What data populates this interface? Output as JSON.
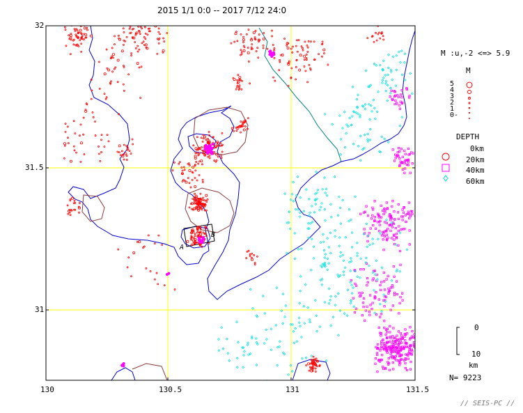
{
  "title": "2015 1/1 0:0 -- 2017 7/12 24:0",
  "axes": {
    "lat_ticks": [
      "32",
      "31.5",
      "31"
    ],
    "lon_ticks": [
      "130",
      "130.5",
      "131",
      "131.5"
    ]
  },
  "legend": {
    "magnitude_range": "M :u,-2 <=> 5.9",
    "magnitude_heading": "M",
    "magnitude_labels": [
      "5",
      "4",
      "3",
      "2",
      "1",
      "0-"
    ],
    "depth_heading": "DEPTH",
    "depth_labels": [
      "0km",
      "20km",
      "40km",
      "60km"
    ],
    "depth_colors": [
      "#ff0000",
      "#ff00ff",
      "#ff00ff",
      "#00e5e5"
    ],
    "depth_symbols": [
      "circle",
      "circle",
      "square",
      "diamond"
    ]
  },
  "cross_section_labels": [
    "A",
    "B"
  ],
  "scale": {
    "top_label": "0",
    "bottom_label": "10",
    "unit": "km"
  },
  "count": "N= 9223",
  "credit": "// SEIS-PC //",
  "colors": {
    "grid": "#ffff00",
    "coast": "#0000cc",
    "river": "#008080",
    "caldera": "#8b3a3a",
    "shallow": "#ff0000",
    "mid": "#ff00ff",
    "deep": "#00e5e5"
  }
}
